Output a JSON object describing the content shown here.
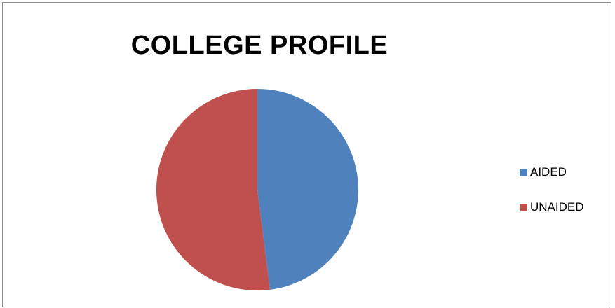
{
  "chart_data": {
    "type": "pie",
    "title": "COLLEGE PROFILE",
    "categories": [
      "AIDED",
      "UNAIDED"
    ],
    "values": [
      48,
      52
    ],
    "colors": [
      "#4f81bd",
      "#c0504d"
    ],
    "legend_position": "right"
  }
}
